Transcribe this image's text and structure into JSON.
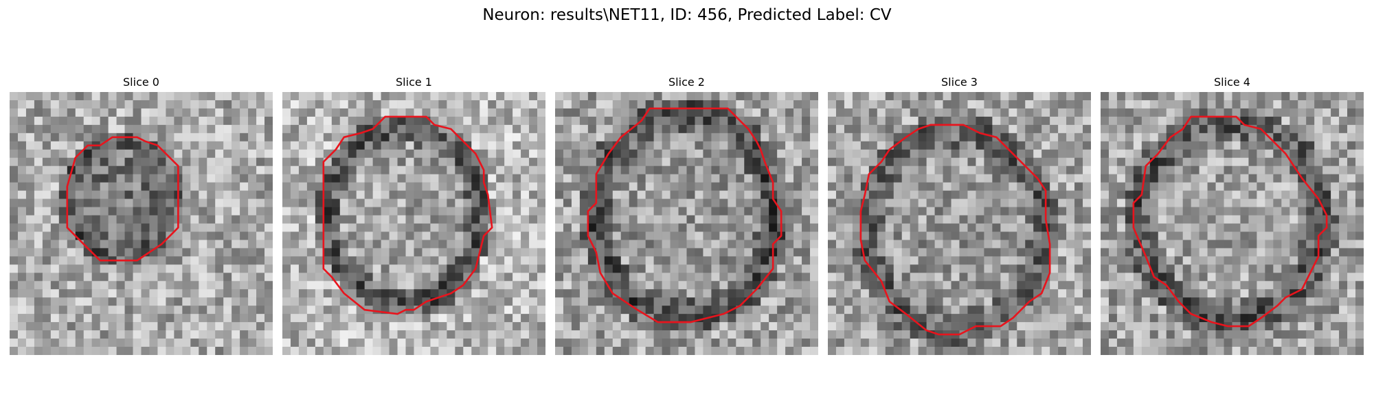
{
  "figure": {
    "title": "Neuron: results\\NET11, ID: 456, Predicted Label: CV"
  },
  "panels": [
    {
      "title": "Slice 0",
      "shape": "small-cell"
    },
    {
      "title": "Slice 1",
      "shape": "round-cell"
    },
    {
      "title": "Slice 2",
      "shape": "large-cell"
    },
    {
      "title": "Slice 3",
      "shape": "large-cell-low"
    },
    {
      "title": "Slice 4",
      "shape": "round-cell-mid"
    }
  ],
  "colors": {
    "contour": "#e8141d",
    "colormap": "gray"
  }
}
